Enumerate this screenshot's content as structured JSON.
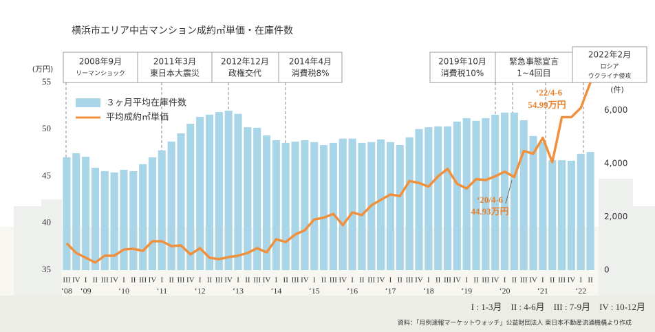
{
  "chart_data": {
    "type": "combo",
    "title": "横浜市エリア中古マンション成約㎡単価・在庫件数",
    "y_unit": "(万円)",
    "y2_unit": "(件)",
    "categories": [
      "III",
      "IV",
      "I",
      "II",
      "III",
      "IV",
      "I",
      "II",
      "III",
      "IV",
      "I",
      "II",
      "III",
      "IV",
      "I",
      "II",
      "III",
      "IV",
      "I",
      "II",
      "III",
      "IV",
      "I",
      "II",
      "III",
      "IV",
      "I",
      "II",
      "III",
      "IV",
      "I",
      "II",
      "III",
      "IV",
      "I",
      "II",
      "III",
      "IV",
      "I",
      "II",
      "III",
      "IV",
      "I",
      "II",
      "III",
      "IV",
      "I",
      "II",
      "III",
      "IV",
      "I",
      "II",
      "III",
      "IV",
      "I",
      "II"
    ],
    "group_labels": [
      "‘08",
      null,
      "‘09",
      null,
      null,
      null,
      "‘10",
      null,
      null,
      null,
      "‘11",
      null,
      null,
      null,
      "‘12",
      null,
      null,
      null,
      "‘13",
      null,
      null,
      null,
      "‘14",
      null,
      null,
      null,
      "‘15",
      null,
      null,
      null,
      "‘16",
      null,
      null,
      null,
      "‘17",
      null,
      null,
      null,
      "‘18",
      null,
      null,
      null,
      "‘19",
      null,
      null,
      null,
      "‘20",
      null,
      null,
      null,
      "‘21",
      null,
      null,
      null,
      "‘22",
      null
    ],
    "series": [
      {
        "name": "３ヶ月平均在庫件数",
        "type": "bar",
        "axis": "y2",
        "color": "#a9d5e8",
        "values": [
          4240,
          4390,
          4260,
          3850,
          3720,
          3670,
          3770,
          3720,
          3980,
          4240,
          4500,
          4830,
          5140,
          5500,
          5760,
          5840,
          5940,
          5990,
          5870,
          5370,
          5350,
          5060,
          4880,
          4780,
          4830,
          4880,
          4810,
          4700,
          4780,
          4940,
          4940,
          4780,
          4810,
          4910,
          4810,
          4700,
          4990,
          5300,
          5370,
          5400,
          5400,
          5580,
          5710,
          5610,
          5710,
          5840,
          5920,
          5920,
          5630,
          5040,
          4810,
          4130,
          4130,
          4110,
          4370,
          4440
        ]
      },
      {
        "name": "平均成約㎡単価",
        "type": "line",
        "color": "#f0903c",
        "values": [
          37.86,
          36.83,
          36.32,
          35.81,
          36.54,
          36.54,
          37.2,
          37.27,
          37.05,
          38.08,
          38.08,
          37.56,
          37.64,
          36.68,
          37.34,
          36.32,
          36.17,
          36.39,
          36.54,
          36.83,
          37.34,
          36.9,
          38.3,
          38.0,
          38.8,
          39.25,
          40.4,
          40.6,
          41.0,
          39.8,
          41.15,
          40.86,
          41.9,
          42.5,
          43.06,
          42.9,
          44.5,
          44.3,
          43.9,
          45.0,
          45.8,
          44.2,
          43.7,
          44.7,
          44.6,
          45.0,
          45.5,
          44.93,
          47.7,
          47.4,
          49.1,
          46.5,
          51.3,
          51.3,
          52.3,
          54.99
        ],
        "value_labels": [
          null,
          null,
          null,
          null,
          null,
          null,
          null,
          null,
          null,
          null,
          null,
          null,
          null,
          null,
          null,
          null,
          null,
          null,
          null,
          null,
          null,
          null,
          null,
          null,
          null,
          null,
          null,
          null,
          null,
          null,
          null,
          null,
          null,
          null,
          null,
          null,
          null,
          null,
          null,
          null,
          null,
          null,
          null,
          null,
          null,
          null,
          null,
          "44.93万円",
          null,
          null,
          null,
          null,
          null,
          null,
          null,
          "54.99万円"
        ]
      }
    ],
    "ylim": [
      35,
      55
    ],
    "yticks": [
      35,
      40,
      45,
      50,
      55
    ],
    "y2lim": [
      0,
      7050
    ],
    "y2ticks": [
      0,
      {
        "value": 2000,
        "label": "2,000"
      },
      {
        "value": 4000,
        "label": "4,000"
      },
      {
        "value": 6000,
        "label": "6,000"
      }
    ],
    "annotations": [
      "‘20/4-6",
      "‘22/4-6"
    ],
    "events": [
      {
        "date": "2008年9月",
        "label": [
          "リーマンショック"
        ]
      },
      {
        "date": "2011年3月",
        "label": [
          "東日本大震災"
        ]
      },
      {
        "date": "2012年12月",
        "label": [
          "政権交代"
        ]
      },
      {
        "date": "2014年4月",
        "label": [
          "消費税8%"
        ]
      },
      {
        "date": "2019年10月",
        "label": [
          "消費税10%"
        ]
      },
      {
        "date": "緊急事態宣言",
        "label": [
          "1~4回目"
        ]
      },
      {
        "date": "2022年2月",
        "label": [
          "ロシア",
          "ウクライナ侵攻"
        ]
      }
    ],
    "quarter_legend": "I : 1-3月　II : 4-6月　III : 7-9月　IV : 10-12月",
    "source": "資料：「月例速報マーケットウォッチ」公益財団法人 東日本不動産流通機構より作成"
  }
}
